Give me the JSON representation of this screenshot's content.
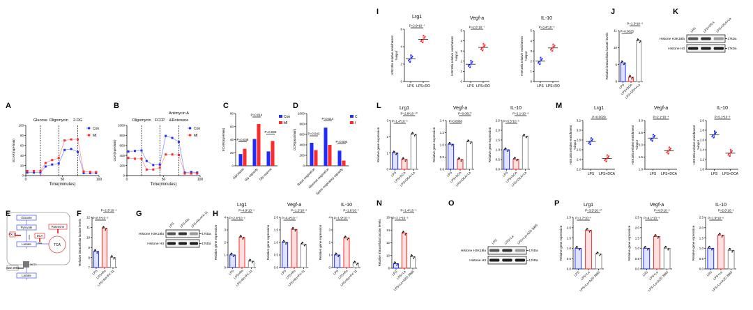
{
  "colors": {
    "con": "#1f2bff",
    "treat": "#ff2a2a",
    "control_fill": "#dfe3ff",
    "treat_fill": "#ffe0e0",
    "third": "#8a8a8a"
  },
  "panel_labels": [
    "A",
    "B",
    "C",
    "D",
    "E",
    "F",
    "G",
    "H",
    "I",
    "J",
    "K",
    "L",
    "M",
    "N",
    "O",
    "P"
  ],
  "diagram": {
    "nodes": [
      "Glucose",
      "Pyruvate",
      "Lactate",
      "Lactate",
      "TCA"
    ],
    "inhibitors": [
      "FX-11",
      "DCA",
      "Rotenone",
      "AZD 3965"
    ],
    "enzymes": [
      "LDHA",
      "PDH",
      "MCT1"
    ]
  },
  "blots": [
    {
      "panel": "G",
      "lanes": [
        "LPS",
        "LPS+Ro",
        "LPS+Ro+FX-11"
      ],
      "rows": [
        "Histone H3K18la",
        "Histone H3"
      ],
      "marker": "17kDa"
    },
    {
      "panel": "K",
      "lanes": [
        "LPS",
        "LPS+DCA",
        "LPS+DCA+La"
      ],
      "rows": [
        "Histone H3K18la",
        "Histone H3"
      ],
      "marker": "17kDa"
    },
    {
      "panel": "O",
      "lanes": [
        "LPS",
        "LPS+La",
        "LPS+La+AZD 3965"
      ],
      "rows": [
        "Histone H3K18la",
        "Histone H3"
      ],
      "marker": "17kDa"
    }
  ],
  "chart_data": [
    {
      "panel": "A",
      "type": "line",
      "xlabel": "Time(minutes)",
      "ylabel": "ECAR(mpH/min)",
      "xlim": [
        0,
        100
      ],
      "ylim": [
        0,
        100
      ],
      "xticks": [
        "0",
        "50",
        "100"
      ],
      "yticks": [
        "0",
        "20",
        "40",
        "60",
        "80",
        "100"
      ],
      "legend": "top-right",
      "events": [
        {
          "x": 20,
          "label": "Glucose"
        },
        {
          "x": 45,
          "label": "Oligomycin"
        },
        {
          "x": 71,
          "label": "2-DG"
        }
      ],
      "series": [
        {
          "name": "Con",
          "x": [
            2,
            11,
            20,
            27,
            36,
            45,
            53,
            62,
            71,
            79,
            88,
            96
          ],
          "y": [
            6,
            6,
            6,
            18,
            22,
            24,
            51,
            53,
            47,
            5,
            5,
            5
          ]
        },
        {
          "name": "MI",
          "x": [
            2,
            11,
            20,
            27,
            36,
            45,
            53,
            62,
            71,
            79,
            88,
            96
          ],
          "y": [
            9,
            9,
            9,
            25,
            31,
            35,
            70,
            72,
            72,
            8,
            7,
            7
          ]
        }
      ]
    },
    {
      "panel": "B",
      "type": "line",
      "xlabel": "Time(minutes)",
      "ylabel": "OCR(mpH/min)",
      "xlim": [
        0,
        100
      ],
      "ylim": [
        0,
        1000
      ],
      "xticks": [
        "0",
        "50",
        "100"
      ],
      "yticks": [
        "0",
        "200",
        "400",
        "600",
        "800",
        "1000"
      ],
      "legend": "top-right",
      "events": [
        {
          "x": 20,
          "label": "Oligomycin"
        },
        {
          "x": 45,
          "label": "FCCP"
        },
        {
          "x": 71,
          "label": "&Rotenone",
          "label_top": "Antimycin A"
        }
      ],
      "series": [
        {
          "name": "Con",
          "x": [
            2,
            11,
            20,
            27,
            36,
            45,
            53,
            62,
            71,
            79,
            88,
            96
          ],
          "y": [
            480,
            490,
            500,
            290,
            210,
            220,
            790,
            750,
            670,
            60,
            70,
            60
          ]
        },
        {
          "name": "MI",
          "x": [
            2,
            11,
            20,
            27,
            36,
            45,
            53,
            62,
            71,
            79,
            88,
            96
          ],
          "y": [
            350,
            335,
            335,
            120,
            120,
            160,
            420,
            420,
            410,
            40,
            40,
            40
          ]
        }
      ]
    },
    {
      "panel": "C",
      "type": "grouped-bar",
      "ylabel": "ECAR(mpH/min)",
      "ylim": [
        0,
        80
      ],
      "yticks": [
        "0",
        "20",
        "40",
        "60",
        "80"
      ],
      "legend": "top-right",
      "categories": [
        "Glycolysis",
        "Gly capacity",
        "Gly reserve"
      ],
      "series": [
        {
          "name": "Con",
          "values": [
            18,
            41,
            22
          ]
        },
        {
          "name": "MI",
          "values": [
            26,
            64,
            38
          ]
        }
      ],
      "pvalues": [
        "P=0.038",
        "P=0.014",
        "P=0.026"
      ]
    },
    {
      "panel": "D",
      "type": "grouped-bar",
      "ylabel": "OCR(pmol/min)",
      "ylim": [
        0,
        1000
      ],
      "yticks": [
        "0",
        "200",
        "400",
        "600",
        "800",
        "1000"
      ],
      "legend": "top-right",
      "categories": [
        "Basal respiration",
        "Maximal respiration",
        "Spare respiratory capacity"
      ],
      "series": [
        {
          "name": "C",
          "values": [
            440,
            730,
            290
          ]
        },
        {
          "name": "I",
          "values": [
            300,
            400,
            100
          ]
        }
      ],
      "pvalues": [
        "P=0.043",
        "P=0.014",
        "P=0.004"
      ]
    },
    {
      "panel": "F",
      "type": "bar",
      "ylabel": "Relative intracellular lactate levels",
      "ylim": [
        7,
        12
      ],
      "yticks": [
        "7",
        "8",
        "9",
        "10",
        "11",
        "12"
      ],
      "categories": [
        "LPS",
        "LPS+Ro",
        "LPS+Ro+FX-11"
      ],
      "values": [
        8.6,
        10.9,
        8.0
      ],
      "comparisons": [
        {
          "a": 0,
          "b": 1,
          "p": "P=8.5*10⁻⁵"
        },
        {
          "a": 1,
          "b": 2,
          "p": "P=2.3*10⁻⁶"
        }
      ]
    },
    {
      "panel": "H",
      "type": "bar",
      "title": "Lrg1",
      "ylabel": "Relative gene expression",
      "ylim": [
        0,
        4
      ],
      "yticks": [
        "0",
        "1",
        "2",
        "3",
        "4"
      ],
      "categories": [
        "LPS",
        "LPS+Ro",
        "LPS+Ro+FX-11"
      ],
      "values": [
        1.0,
        2.4,
        0.5
      ],
      "comparisons": [
        {
          "a": 0,
          "b": 1,
          "p": "P=2.4*10⁻⁵"
        },
        {
          "a": 1,
          "b": 2,
          "p": "P=4.9*10⁻⁵"
        }
      ]
    },
    {
      "panel": "H",
      "type": "bar",
      "title": "Vegf-a",
      "ylabel": "Relative gene expression",
      "ylim": [
        0,
        2
      ],
      "yticks": [
        "0.0",
        "0.5",
        "1.0",
        "1.5",
        "2.0"
      ],
      "categories": [
        "LPS",
        "LPS+Ro",
        "LPS+Ro+FX-11"
      ],
      "values": [
        1.0,
        1.52,
        0.93
      ],
      "comparisons": [
        {
          "a": 0,
          "b": 1,
          "p": "P=4.4*10⁻⁷"
        },
        {
          "a": 1,
          "b": 2,
          "p": "P=1.2*10⁻⁶"
        }
      ]
    },
    {
      "panel": "H",
      "type": "bar",
      "title": "IL-10",
      "ylabel": "Relative gene expression",
      "ylim": [
        0,
        4
      ],
      "yticks": [
        "0",
        "1",
        "2",
        "3",
        "4"
      ],
      "categories": [
        "LPS",
        "LPS+Ro",
        "LPS+Ro+FX-11"
      ],
      "values": [
        1.0,
        2.35,
        0.35
      ],
      "comparisons": [
        {
          "a": 0,
          "b": 1,
          "p": "P=1.9*10⁻⁵"
        },
        {
          "a": 1,
          "b": 2,
          "p": "P=1.6*10⁻⁷"
        }
      ]
    },
    {
      "panel": "I",
      "type": "scatter",
      "title": "Lrg1",
      "ylabel": "H3K18la relative enrichment",
      "ylabel2": "%input",
      "ylim": [
        0,
        6
      ],
      "yticks": [
        "0",
        "2",
        "4",
        "6"
      ],
      "categories": [
        "LPS",
        "LPS+RO"
      ],
      "means": [
        2.6,
        4.85
      ],
      "comparisons": [
        {
          "a": 0,
          "b": 1,
          "p": "P=2.9*10⁻⁷"
        }
      ]
    },
    {
      "panel": "I",
      "type": "scatter",
      "title": "Vegf-a",
      "ylabel": "H3K18la relative enrichment",
      "ylabel2": "%input",
      "ylim": [
        0,
        5
      ],
      "yticks": [
        "0",
        "1",
        "2",
        "3",
        "4",
        "5"
      ],
      "categories": [
        "LPS",
        "LPS+RO"
      ],
      "means": [
        1.7,
        3.35
      ],
      "comparisons": [
        {
          "a": 0,
          "b": 1,
          "p": "P=2.6*10⁻⁷"
        }
      ]
    },
    {
      "panel": "I",
      "type": "scatter",
      "title": "IL-10",
      "ylabel": "H3K18la relative enrichment",
      "ylabel2": "%input",
      "ylim": [
        0,
        5
      ],
      "yticks": [
        "0",
        "1",
        "2",
        "3",
        "4",
        "5"
      ],
      "categories": [
        "LPS",
        "LPS+RO"
      ],
      "means": [
        2.0,
        3.3
      ],
      "comparisons": [
        {
          "a": 0,
          "b": 1,
          "p": "P=3.4*10⁻⁶"
        }
      ]
    },
    {
      "panel": "J",
      "type": "bar",
      "ylabel": "Relative intracellular lactate levels",
      "ylim": [
        8,
        11
      ],
      "yticks": [
        "8",
        "9",
        "10",
        "11"
      ],
      "categories": [
        "LPS",
        "LPS+DCA",
        "LPS+DCA+La"
      ],
      "values": [
        9.1,
        8.25,
        10.4
      ],
      "comparisons": [
        {
          "a": 0,
          "b": 1,
          "p": "P=0.0025"
        },
        {
          "a": 1,
          "b": 2,
          "p": "P=1.3*10⁻⁵"
        }
      ]
    },
    {
      "panel": "L",
      "type": "bar",
      "title": "Lrg1",
      "ylabel": "Relative gene expression",
      "ylim": [
        0,
        3
      ],
      "yticks": [
        "0",
        "1",
        "2",
        "3"
      ],
      "categories": [
        "LPS",
        "LPS+DCA",
        "LPS+DCA+La"
      ],
      "values": [
        1.0,
        0.6,
        2.15
      ],
      "comparisons": [
        {
          "a": 0,
          "b": 1,
          "p": "P=1.4*10⁻⁶"
        },
        {
          "a": 1,
          "b": 2,
          "p": "P=2.8*10⁻¹⁰"
        }
      ]
    },
    {
      "panel": "L",
      "type": "bar",
      "title": "Vegf-a",
      "ylabel": "Relative gene expression",
      "ylim": [
        0.6,
        1.4
      ],
      "yticks": [
        "0.6",
        "0.8",
        "1.0",
        "1.2",
        "1.4"
      ],
      "categories": [
        "LPS",
        "LPS+DCA",
        "LPS+DCA+La"
      ],
      "values": [
        1.01,
        0.76,
        1.05
      ],
      "comparisons": [
        {
          "a": 0,
          "b": 1,
          "p": "P=0.0066"
        },
        {
          "a": 1,
          "b": 2,
          "p": "P=0.0017"
        }
      ]
    },
    {
      "panel": "L",
      "type": "bar",
      "title": "IL-10",
      "ylabel": "Relative gene expression",
      "ylim": [
        0,
        2.5
      ],
      "yticks": [
        "0.0",
        "0.5",
        "1.0",
        "1.5",
        "2.0",
        "2.5"
      ],
      "categories": [
        "LPS",
        "LPS+DCA",
        "LPS+DCA+La"
      ],
      "values": [
        1.0,
        0.52,
        1.7
      ],
      "comparisons": [
        {
          "a": 0,
          "b": 1,
          "p": "P=5.5*10⁻⁶"
        },
        {
          "a": 1,
          "b": 2,
          "p": "P=2.1*10⁻⁸"
        }
      ]
    },
    {
      "panel": "M",
      "type": "scatter",
      "title": "Lrg1",
      "ylabel": "H3K18la relative enrichment",
      "ylabel2": "%input",
      "ylim": [
        2.2,
        3.2
      ],
      "yticks": [
        "2.2",
        "2.4",
        "2.6",
        "2.8",
        "3.0",
        "3.2"
      ],
      "categories": [
        "LPS",
        "LPS+DCA"
      ],
      "means": [
        2.77,
        2.42
      ],
      "comparisons": [
        {
          "a": 0,
          "b": 1,
          "p": "P=0.0029"
        }
      ]
    },
    {
      "panel": "M",
      "type": "scatter",
      "title": "Vegf-a",
      "ylabel": "H3K18la relative enrichment",
      "ylabel2": "%input",
      "ylim": [
        1.0,
        3.0
      ],
      "yticks": [
        "1.0",
        "1.5",
        "2.0",
        "2.5",
        "3.0"
      ],
      "categories": [
        "LPS",
        "LPS+DCA"
      ],
      "means": [
        2.28,
        1.76
      ],
      "comparisons": [
        {
          "a": 0,
          "b": 1,
          "p": "P=2.1*10⁻⁴"
        }
      ]
    },
    {
      "panel": "M",
      "type": "scatter",
      "title": "IL-10",
      "ylabel": "H3K18la relative enrichment",
      "ylabel2": "%input",
      "ylim": [
        1.0,
        2.0
      ],
      "yticks": [
        "1.0",
        "1.2",
        "1.4",
        "1.6",
        "1.8",
        "2.0"
      ],
      "categories": [
        "LPS",
        "LPS+DCA"
      ],
      "means": [
        1.71,
        1.33
      ],
      "comparisons": [
        {
          "a": 0,
          "b": 1,
          "p": "P=5.1*10⁻⁶"
        }
      ]
    },
    {
      "panel": "N",
      "type": "bar",
      "ylabel": "Relative intracellular lactate levels",
      "ylim": [
        8,
        16
      ],
      "yticks": [
        "8",
        "10",
        "12",
        "14",
        "16"
      ],
      "categories": [
        "LPS",
        "LPS+La",
        "LPS+La+AZD 3965"
      ],
      "values": [
        8.7,
        13.5,
        9.8
      ],
      "comparisons": [
        {
          "a": 0,
          "b": 1,
          "p": "P=3.1*10⁻⁵"
        },
        {
          "a": 1,
          "b": 2,
          "p": "P=1.4*10⁻⁵"
        }
      ]
    },
    {
      "panel": "P",
      "type": "bar",
      "title": "Lrg1",
      "ylabel": "Relative gene expression",
      "ylim": [
        0,
        2.5
      ],
      "yticks": [
        "0.0",
        "0.5",
        "1.0",
        "1.5",
        "2.0",
        "2.5"
      ],
      "categories": [
        "LPS",
        "LPS+La",
        "LPS+La+AZD 3965"
      ],
      "values": [
        1.0,
        1.87,
        0.72
      ],
      "comparisons": [
        {
          "a": 0,
          "b": 1,
          "p": "P=1.7*10⁻⁹"
        },
        {
          "a": 1,
          "b": 2,
          "p": "P=3.5*10⁻¹⁰"
        }
      ]
    },
    {
      "panel": "P",
      "type": "bar",
      "title": "Vegf-a",
      "ylabel": "Relative gene expression",
      "ylim": [
        0,
        2.5
      ],
      "yticks": [
        "0.0",
        "0.5",
        "1.0",
        "1.5",
        "2.0",
        "2.5"
      ],
      "categories": [
        "LPS",
        "LPS+La",
        "LPS+La+AZD 3965"
      ],
      "values": [
        1.0,
        1.57,
        1.0
      ],
      "comparisons": [
        {
          "a": 0,
          "b": 1,
          "p": "P=4.1*10⁻⁴"
        },
        {
          "a": 1,
          "b": 2,
          "p": "P=4.3*10⁻⁵"
        }
      ]
    },
    {
      "panel": "P",
      "type": "bar",
      "title": "IL-10",
      "ylabel": "Relative gene expression",
      "ylim": [
        0,
        2.5
      ],
      "yticks": [
        "0.0",
        "0.5",
        "1.0",
        "1.5",
        "2.0",
        "2.5"
      ],
      "categories": [
        "LPS",
        "LPS+La",
        "LPS+La+AZD 3965"
      ],
      "values": [
        1.0,
        1.63,
        0.9
      ],
      "comparisons": [
        {
          "a": 0,
          "b": 1,
          "p": "P=1.9*10⁻⁶"
        },
        {
          "a": 1,
          "b": 2,
          "p": "P=2.6*10⁻⁶"
        }
      ]
    }
  ]
}
